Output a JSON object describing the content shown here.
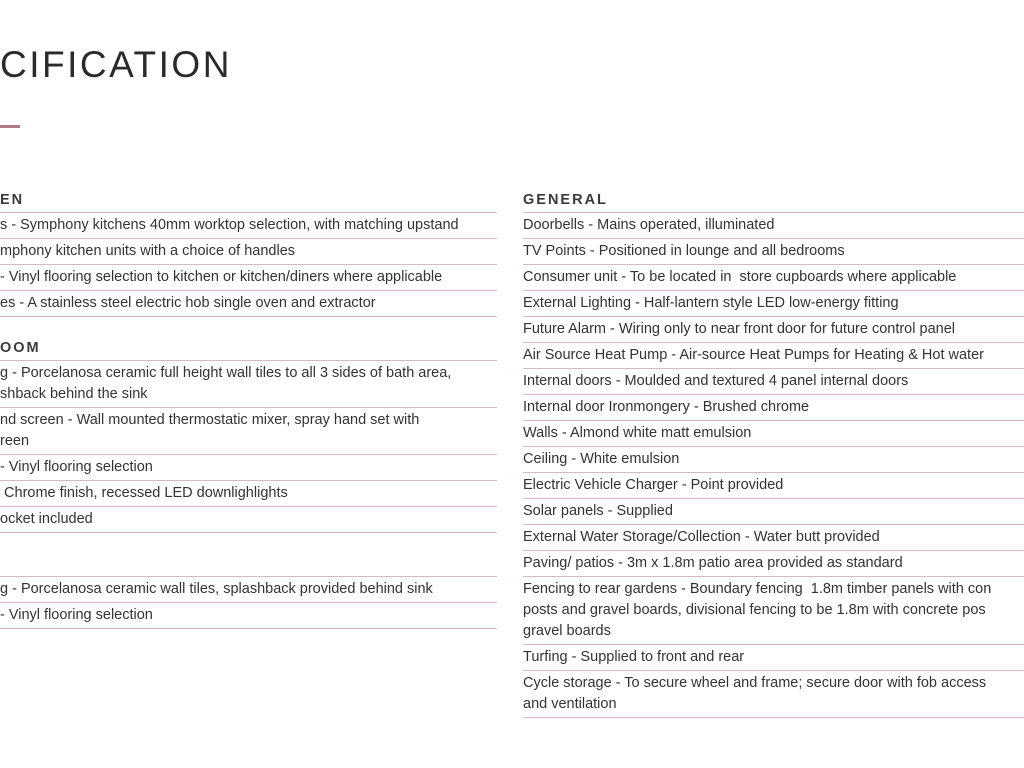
{
  "title": "CIFICATION",
  "colors": {
    "accent": "#b07887",
    "rule": "#d7b9c1",
    "text": "#333335"
  },
  "left": {
    "sections": [
      {
        "heading": "EN",
        "rows": [
          "s - Symphony kitchens 40mm worktop selection, with matching upstand",
          "mphony kitchen units with a choice of handles",
          "- Vinyl flooring selection to kitchen or kitchen/diners where applicable",
          "es - A stainless steel electric hob single oven and extractor"
        ]
      },
      {
        "heading": "OOM",
        "rows": [
          "g - Porcelanosa ceramic full height wall tiles to all 3 sides of bath area,\nshback behind the sink",
          "nd screen - Wall mounted thermostatic mixer, spray hand set with\nreen",
          "- Vinyl flooring selection",
          " Chrome finish, recessed LED downlighlights",
          "ocket included"
        ]
      },
      {
        "heading": "",
        "rows": [
          "g - Porcelanosa ceramic wall tiles, splashback provided behind sink",
          "- Vinyl flooring selection"
        ]
      }
    ]
  },
  "right": {
    "sections": [
      {
        "heading": "GENERAL",
        "rows": [
          "Doorbells - Mains operated, illuminated",
          "TV Points - Positioned in lounge and all bedrooms",
          "Consumer unit - To be located in  store cupboards where applicable",
          "External Lighting - Half-lantern style LED low-energy fitting",
          "Future Alarm - Wiring only to near front door for future control panel",
          "Air Source Heat Pump - Air-source Heat Pumps for Heating & Hot water",
          "Internal doors - Moulded and textured 4 panel internal doors",
          "Internal door Ironmongery - Brushed chrome",
          "Walls - Almond white matt emulsion",
          "Ceiling - White emulsion",
          "Electric Vehicle Charger - Point provided",
          "Solar panels - Supplied",
          "External Water Storage/Collection - Water butt provided",
          "Paving/ patios - 3m x 1.8m patio area provided as standard",
          "Fencing to rear gardens - Boundary fencing  1.8m timber panels with con\nposts and gravel boards, divisional fencing to be 1.8m with concrete pos\ngravel boards",
          "Turfing - Supplied to front and rear",
          "Cycle storage - To secure wheel and frame; secure door with fob access\nand ventilation"
        ]
      }
    ]
  }
}
